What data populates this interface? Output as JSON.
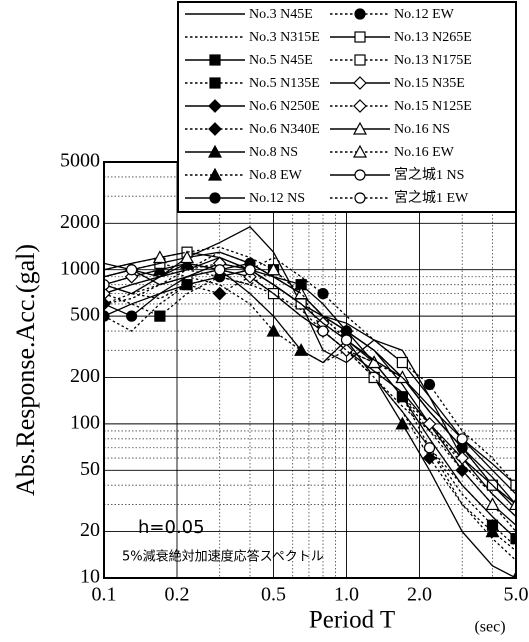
{
  "chart_data": {
    "type": "line",
    "x_label": "Period T",
    "x_unit": "(sec)",
    "y_label": "Abs.Response.Acc.(gal)",
    "annotations": [
      "h=0.05",
      "5%減衰絶対加速度応答スペクトル"
    ],
    "log_x": true,
    "log_y": true,
    "grid": true,
    "xlim": [
      0.1,
      5.0
    ],
    "ylim": [
      10,
      5000
    ],
    "xticks": [
      0.1,
      0.2,
      0.5,
      {
        "value": 1,
        "label": "1.0"
      },
      {
        "value": 2,
        "label": "2.0"
      },
      {
        "value": 5,
        "label": "5.0"
      }
    ],
    "yticks": [
      10,
      20,
      50,
      100,
      200,
      500,
      1000,
      2000,
      5000
    ],
    "xminor_ticks": [
      0.3,
      0.4,
      0.6,
      0.7,
      0.8,
      0.9,
      3,
      4
    ],
    "yminor_ticks": [
      30,
      40,
      60,
      70,
      80,
      90,
      300,
      400,
      600,
      700,
      800,
      900,
      3000,
      4000
    ],
    "legend": "top-right",
    "x": [
      0.1,
      0.13,
      0.17,
      0.22,
      0.3,
      0.4,
      0.5,
      0.65,
      0.8,
      1.0,
      1.3,
      1.7,
      2.2,
      3.0,
      4.0,
      5.0
    ],
    "series": [
      {
        "name": "No.3 N45E",
        "color": "#000",
        "dash": "solid",
        "marker": "none",
        "values": [
          800,
          700,
          900,
          1200,
          1500,
          1900,
          1300,
          600,
          300,
          250,
          350,
          300,
          150,
          60,
          35,
          25
        ]
      },
      {
        "name": "No.3 N315E",
        "color": "#000",
        "dash": "dotted",
        "marker": "none",
        "values": [
          600,
          650,
          800,
          1000,
          1300,
          1100,
          900,
          700,
          400,
          300,
          250,
          200,
          120,
          70,
          40,
          30
        ]
      },
      {
        "name": "No.5 N45E",
        "color": "#000",
        "dash": "solid",
        "marker": "filled-square",
        "values": [
          500,
          600,
          700,
          800,
          900,
          1000,
          900,
          800,
          600,
          400,
          250,
          150,
          80,
          40,
          25,
          18
        ]
      },
      {
        "name": "No.5 N135E",
        "color": "#000",
        "dash": "dotted",
        "marker": "filled-square",
        "values": [
          700,
          600,
          500,
          700,
          900,
          800,
          1000,
          700,
          500,
          350,
          200,
          120,
          70,
          35,
          22,
          16
        ]
      },
      {
        "name": "No.6 N250E",
        "color": "#000",
        "dash": "solid",
        "marker": "filled-diamond",
        "values": [
          900,
          1000,
          800,
          900,
          1100,
          1000,
          800,
          600,
          500,
          400,
          300,
          180,
          100,
          50,
          30,
          22
        ]
      },
      {
        "name": "No.6 N340E",
        "color": "#000",
        "dash": "dotted",
        "marker": "filled-diamond",
        "values": [
          600,
          700,
          650,
          800,
          700,
          900,
          700,
          500,
          400,
          300,
          200,
          120,
          60,
          30,
          18,
          13
        ]
      },
      {
        "name": "No.8 NS",
        "color": "#000",
        "dash": "solid",
        "marker": "filled-triangle",
        "values": [
          700,
          800,
          900,
          1100,
          1000,
          700,
          500,
          300,
          250,
          350,
          200,
          100,
          50,
          20,
          12,
          10
        ]
      },
      {
        "name": "No.8 EW",
        "color": "#000",
        "dash": "dotted",
        "marker": "filled-triangle",
        "values": [
          800,
          900,
          1000,
          900,
          800,
          600,
          400,
          300,
          250,
          300,
          250,
          150,
          70,
          30,
          20,
          15
        ]
      },
      {
        "name": "No.12 NS",
        "color": "#000",
        "dash": "solid",
        "marker": "filled-circle",
        "values": [
          600,
          500,
          700,
          900,
          1000,
          1100,
          900,
          700,
          500,
          400,
          300,
          200,
          120,
          70,
          40,
          30
        ]
      },
      {
        "name": "No.12 EW",
        "color": "#000",
        "dash": "dotted",
        "marker": "filled-circle",
        "values": [
          500,
          400,
          600,
          800,
          900,
          1000,
          1200,
          900,
          700,
          500,
          350,
          250,
          180,
          90,
          60,
          40
        ]
      },
      {
        "name": "No.13 N265E",
        "color": "#000",
        "dash": "solid",
        "marker": "open-square",
        "values": [
          1000,
          1100,
          1200,
          1300,
          1200,
          1000,
          800,
          600,
          500,
          450,
          350,
          250,
          150,
          80,
          55,
          40
        ]
      },
      {
        "name": "No.13 N175E",
        "color": "#000",
        "dash": "dotted",
        "marker": "open-square",
        "values": [
          900,
          1000,
          1100,
          1000,
          900,
          800,
          700,
          500,
          400,
          300,
          200,
          130,
          90,
          60,
          40,
          30
        ]
      },
      {
        "name": "No.15 N35E",
        "color": "#000",
        "dash": "solid",
        "marker": "open-diamond",
        "values": [
          800,
          900,
          1000,
          1100,
          1000,
          900,
          700,
          500,
          400,
          300,
          220,
          160,
          100,
          60,
          40,
          28
        ]
      },
      {
        "name": "No.15 N125E",
        "color": "#000",
        "dash": "dotted",
        "marker": "open-diamond",
        "values": [
          700,
          800,
          900,
          1000,
          1100,
          1000,
          800,
          600,
          450,
          350,
          250,
          150,
          100,
          55,
          35,
          25
        ]
      },
      {
        "name": "No.16 NS",
        "color": "#000",
        "dash": "solid",
        "marker": "open-triangle",
        "values": [
          900,
          1000,
          1100,
          1200,
          1300,
          1100,
          900,
          700,
          500,
          400,
          300,
          200,
          120,
          70,
          45,
          30
        ]
      },
      {
        "name": "No.16 EW",
        "color": "#000",
        "dash": "dotted",
        "marker": "open-triangle",
        "values": [
          1000,
          1100,
          1200,
          1300,
          1400,
          1200,
          1000,
          700,
          500,
          350,
          250,
          150,
          90,
          50,
          30,
          20
        ]
      },
      {
        "name": "宮之城1 NS",
        "color": "#000",
        "dash": "solid",
        "marker": "open-circle",
        "values": [
          1100,
          1000,
          900,
          1000,
          1200,
          1000,
          800,
          600,
          450,
          350,
          260,
          200,
          130,
          80,
          50,
          35
        ]
      },
      {
        "name": "宮之城1 EW",
        "color": "#000",
        "dash": "dotted",
        "marker": "open-circle",
        "values": [
          800,
          700,
          800,
          900,
          1000,
          900,
          700,
          550,
          400,
          300,
          200,
          120,
          70,
          40,
          25,
          18
        ]
      }
    ]
  }
}
